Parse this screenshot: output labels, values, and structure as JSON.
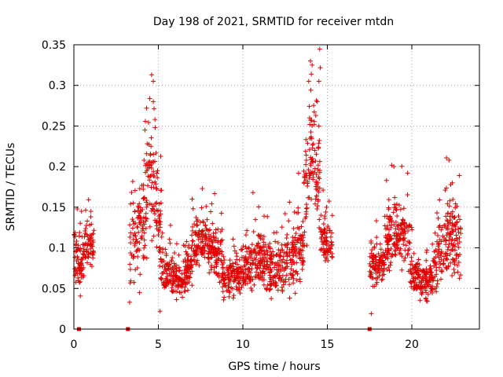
{
  "chart_data": {
    "type": "scatter",
    "title": "Day 198 of 2021, SRMTID for receiver mtdn",
    "xlabel": "GPS time / hours",
    "ylabel": "SRMTID / TECUs",
    "xlim": [
      0,
      24
    ],
    "ylim": [
      0,
      0.35
    ],
    "grid": true,
    "xticks": [
      0,
      5,
      10,
      15,
      20
    ],
    "xtick_labels": [
      "0",
      "5",
      "10",
      "15",
      "20"
    ],
    "yticks": [
      0,
      0.05,
      0.1,
      0.15,
      0.2,
      0.25,
      0.3,
      0.35
    ],
    "ytick_labels": [
      "0",
      "0.05",
      "0.1",
      "0.15",
      "0.2",
      "0.25",
      "0.3",
      "0.35"
    ],
    "marker": "+",
    "color": "#e00000",
    "zero_markers_x": [
      0.3,
      3.2,
      17.5
    ],
    "segments": [
      {
        "start": 0.0,
        "end": 1.2,
        "profile": [
          [
            0.0,
            0.09
          ],
          [
            0.4,
            0.075
          ],
          [
            0.7,
            0.1
          ],
          [
            1.0,
            0.1
          ],
          [
            1.2,
            0.09
          ]
        ],
        "spread": 0.025
      },
      {
        "start": 3.3,
        "end": 5.2,
        "profile": [
          [
            3.3,
            0.09
          ],
          [
            3.8,
            0.12
          ],
          [
            4.2,
            0.14
          ],
          [
            4.5,
            0.18
          ],
          [
            4.8,
            0.17
          ],
          [
            5.2,
            0.1
          ]
        ],
        "spread": 0.05
      },
      {
        "start": 5.2,
        "end": 7.0,
        "profile": [
          [
            5.2,
            0.075
          ],
          [
            6.0,
            0.065
          ],
          [
            6.5,
            0.06
          ],
          [
            7.0,
            0.08
          ]
        ],
        "spread": 0.02
      },
      {
        "start": 7.0,
        "end": 8.8,
        "profile": [
          [
            7.0,
            0.1
          ],
          [
            7.5,
            0.11
          ],
          [
            8.0,
            0.1
          ],
          [
            8.5,
            0.095
          ],
          [
            8.8,
            0.08
          ]
        ],
        "spread": 0.025
      },
      {
        "start": 8.8,
        "end": 10.2,
        "profile": [
          [
            8.8,
            0.06
          ],
          [
            9.5,
            0.065
          ],
          [
            10.2,
            0.07
          ]
        ],
        "spread": 0.02
      },
      {
        "start": 10.2,
        "end": 12.6,
        "profile": [
          [
            10.2,
            0.075
          ],
          [
            11.0,
            0.085
          ],
          [
            11.8,
            0.07
          ],
          [
            12.6,
            0.08
          ]
        ],
        "spread": 0.025
      },
      {
        "start": 12.6,
        "end": 13.6,
        "profile": [
          [
            12.6,
            0.085
          ],
          [
            13.1,
            0.09
          ],
          [
            13.6,
            0.1
          ]
        ],
        "spread": 0.03
      },
      {
        "start": 13.6,
        "end": 14.6,
        "profile": [
          [
            13.6,
            0.15
          ],
          [
            13.9,
            0.2
          ],
          [
            14.1,
            0.23
          ],
          [
            14.4,
            0.19
          ],
          [
            14.6,
            0.15
          ]
        ],
        "spread": 0.06
      },
      {
        "start": 14.6,
        "end": 15.3,
        "profile": [
          [
            14.6,
            0.11
          ],
          [
            15.0,
            0.1
          ],
          [
            15.3,
            0.1
          ]
        ],
        "spread": 0.025
      },
      {
        "start": 17.5,
        "end": 18.4,
        "profile": [
          [
            17.5,
            0.08
          ],
          [
            18.0,
            0.075
          ],
          [
            18.4,
            0.08
          ]
        ],
        "spread": 0.02
      },
      {
        "start": 18.4,
        "end": 19.9,
        "profile": [
          [
            18.4,
            0.11
          ],
          [
            18.9,
            0.115
          ],
          [
            19.4,
            0.11
          ],
          [
            19.9,
            0.095
          ]
        ],
        "spread": 0.03
      },
      {
        "start": 19.9,
        "end": 21.3,
        "profile": [
          [
            19.9,
            0.07
          ],
          [
            20.5,
            0.06
          ],
          [
            21.0,
            0.06
          ],
          [
            21.3,
            0.06
          ]
        ],
        "spread": 0.018
      },
      {
        "start": 21.3,
        "end": 22.9,
        "profile": [
          [
            21.3,
            0.085
          ],
          [
            21.8,
            0.1
          ],
          [
            22.2,
            0.12
          ],
          [
            22.6,
            0.11
          ],
          [
            22.9,
            0.1
          ]
        ],
        "spread": 0.035
      }
    ],
    "notable_points": [
      {
        "x": 4.6,
        "y": 0.313
      },
      {
        "x": 4.7,
        "y": 0.305
      },
      {
        "x": 4.8,
        "y": 0.258
      },
      {
        "x": 4.3,
        "y": 0.272
      },
      {
        "x": 4.7,
        "y": 0.28
      },
      {
        "x": 4.2,
        "y": 0.245
      },
      {
        "x": 14.0,
        "y": 0.33
      },
      {
        "x": 14.1,
        "y": 0.325
      },
      {
        "x": 13.9,
        "y": 0.305
      },
      {
        "x": 14.5,
        "y": 0.305
      },
      {
        "x": 14.4,
        "y": 0.28
      },
      {
        "x": 14.5,
        "y": 0.25
      },
      {
        "x": 13.95,
        "y": 0.26
      },
      {
        "x": 14.25,
        "y": 0.22
      },
      {
        "x": 22.2,
        "y": 0.208
      },
      {
        "x": 22.4,
        "y": 0.18
      },
      {
        "x": 18.5,
        "y": 0.183
      },
      {
        "x": 7.0,
        "y": 0.16
      },
      {
        "x": 7.6,
        "y": 0.173
      },
      {
        "x": 10.6,
        "y": 0.168
      },
      {
        "x": 3.3,
        "y": 0.033
      },
      {
        "x": 17.6,
        "y": 0.019
      },
      {
        "x": 5.1,
        "y": 0.022
      }
    ]
  }
}
